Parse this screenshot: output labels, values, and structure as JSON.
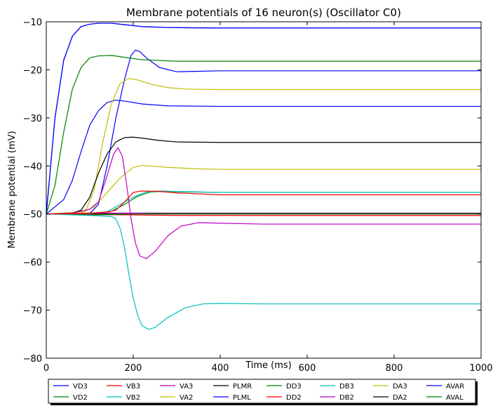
{
  "chart_data": {
    "type": "line",
    "title": "Membrane potentials of 16 neuron(s) (Oscillator C0)",
    "xlabel": "Time (ms)",
    "ylabel": "Membrane potential (mV)",
    "xlim": [
      0,
      1000
    ],
    "ylim": [
      -80,
      -10
    ],
    "xticks": [
      0,
      200,
      400,
      600,
      800,
      1000
    ],
    "yticks": [
      -80,
      -70,
      -60,
      -50,
      -40,
      -30,
      -20,
      -10
    ],
    "grid": false,
    "legend_placement": "bottom-center",
    "series": [
      {
        "name": "VD3",
        "color": "#0000ff",
        "points": [
          [
            0,
            -50
          ],
          [
            20,
            -30
          ],
          [
            40,
            -18
          ],
          [
            60,
            -13
          ],
          [
            80,
            -11
          ],
          [
            100,
            -10.5
          ],
          [
            120,
            -10.3
          ],
          [
            150,
            -10.3
          ],
          [
            180,
            -10.6
          ],
          [
            220,
            -11.0
          ],
          [
            280,
            -11.2
          ],
          [
            400,
            -11.3
          ],
          [
            1000,
            -11.3
          ]
        ]
      },
      {
        "name": "VD2",
        "color": "#008000",
        "points": [
          [
            0,
            -50
          ],
          [
            20,
            -44
          ],
          [
            40,
            -33
          ],
          [
            60,
            -24
          ],
          [
            80,
            -19.5
          ],
          [
            100,
            -17.5
          ],
          [
            120,
            -17.1
          ],
          [
            150,
            -17.0
          ],
          [
            180,
            -17.4
          ],
          [
            220,
            -17.9
          ],
          [
            300,
            -18.2
          ],
          [
            400,
            -18.2
          ],
          [
            1000,
            -18.2
          ]
        ]
      },
      {
        "name": "VB3",
        "color": "#ff0000",
        "points": [
          [
            0,
            -50
          ],
          [
            60,
            -49.9
          ],
          [
            100,
            -49.8
          ],
          [
            140,
            -49.6
          ],
          [
            160,
            -49.2
          ],
          [
            180,
            -47.5
          ],
          [
            200,
            -45.5
          ],
          [
            220,
            -45.2
          ],
          [
            260,
            -45.3
          ],
          [
            300,
            -45.6
          ],
          [
            400,
            -46.0
          ],
          [
            1000,
            -46.0
          ]
        ]
      },
      {
        "name": "VB2",
        "color": "#00bfbf",
        "points": [
          [
            0,
            -50
          ],
          [
            100,
            -50.3
          ],
          [
            150,
            -50.5
          ],
          [
            160,
            -51.0
          ],
          [
            170,
            -53
          ],
          [
            180,
            -57
          ],
          [
            190,
            -62.5
          ],
          [
            200,
            -67.5
          ],
          [
            210,
            -71
          ],
          [
            220,
            -73.2
          ],
          [
            235,
            -74.0
          ],
          [
            250,
            -73.6
          ],
          [
            280,
            -71.5
          ],
          [
            320,
            -69.5
          ],
          [
            360,
            -68.7
          ],
          [
            400,
            -68.6
          ],
          [
            500,
            -68.7
          ],
          [
            1000,
            -68.7
          ]
        ]
      },
      {
        "name": "VA3",
        "color": "#bf00bf",
        "points": [
          [
            0,
            -50
          ],
          [
            60,
            -49.8
          ],
          [
            100,
            -49.0
          ],
          [
            120,
            -47.5
          ],
          [
            140,
            -42
          ],
          [
            155,
            -37.5
          ],
          [
            165,
            -36.2
          ],
          [
            175,
            -38
          ],
          [
            185,
            -44
          ],
          [
            195,
            -51
          ],
          [
            205,
            -56
          ],
          [
            215,
            -58.7
          ],
          [
            230,
            -59.3
          ],
          [
            250,
            -57.8
          ],
          [
            280,
            -54.5
          ],
          [
            310,
            -52.5
          ],
          [
            350,
            -51.8
          ],
          [
            400,
            -51.9
          ],
          [
            500,
            -52.1
          ],
          [
            1000,
            -52.1
          ]
        ]
      },
      {
        "name": "VA2",
        "color": "#bfbf00",
        "points": [
          [
            0,
            -50
          ],
          [
            80,
            -49.8
          ],
          [
            110,
            -48.5
          ],
          [
            140,
            -45.5
          ],
          [
            170,
            -42.5
          ],
          [
            200,
            -40.3
          ],
          [
            220,
            -39.9
          ],
          [
            240,
            -40.0
          ],
          [
            280,
            -40.3
          ],
          [
            350,
            -40.6
          ],
          [
            400,
            -40.7
          ],
          [
            1000,
            -40.7
          ]
        ]
      },
      {
        "name": "PLMR",
        "color": "#000000",
        "points": [
          [
            0,
            -50
          ],
          [
            60,
            -49.8
          ],
          [
            80,
            -49.2
          ],
          [
            100,
            -46.5
          ],
          [
            120,
            -41.5
          ],
          [
            140,
            -37.5
          ],
          [
            160,
            -35.0
          ],
          [
            180,
            -34.1
          ],
          [
            200,
            -34.0
          ],
          [
            220,
            -34.2
          ],
          [
            260,
            -34.7
          ],
          [
            300,
            -35.0
          ],
          [
            400,
            -35.1
          ],
          [
            1000,
            -35.1
          ]
        ]
      },
      {
        "name": "PLML",
        "color": "#0000ff",
        "points": [
          [
            0,
            -50
          ],
          [
            10,
            -40
          ],
          [
            20,
            -30
          ],
          [
            40,
            -18
          ],
          [
            60,
            -13
          ],
          [
            80,
            -11
          ],
          [
            100,
            -10.5
          ],
          [
            120,
            -10.3
          ],
          [
            150,
            -10.3
          ],
          [
            180,
            -10.6
          ],
          [
            220,
            -11.0
          ],
          [
            280,
            -11.2
          ],
          [
            400,
            -11.3
          ],
          [
            1000,
            -11.3
          ]
        ]
      },
      {
        "name": "DD3",
        "color": "#008000",
        "points": [
          [
            0,
            -50
          ],
          [
            100,
            -50.2
          ],
          [
            150,
            -50.1
          ],
          [
            200,
            -50.0
          ],
          [
            250,
            -49.9
          ],
          [
            300,
            -49.9
          ],
          [
            1000,
            -49.9
          ]
        ]
      },
      {
        "name": "DD2",
        "color": "#ff0000",
        "points": [
          [
            0,
            -50
          ],
          [
            100,
            -50.1
          ],
          [
            200,
            -50.2
          ],
          [
            300,
            -50.3
          ],
          [
            1000,
            -50.3
          ]
        ]
      },
      {
        "name": "DB3",
        "color": "#00bfbf",
        "points": [
          [
            0,
            -50
          ],
          [
            100,
            -49.9
          ],
          [
            140,
            -49.5
          ],
          [
            170,
            -48.0
          ],
          [
            200,
            -46.5
          ],
          [
            230,
            -45.4
          ],
          [
            260,
            -45.2
          ],
          [
            300,
            -45.3
          ],
          [
            400,
            -45.5
          ],
          [
            1000,
            -45.5
          ]
        ]
      },
      {
        "name": "DB2",
        "color": "#bf00bf",
        "points": [
          [
            0,
            -50
          ],
          [
            80,
            -49.9
          ],
          [
            100,
            -49.8
          ],
          [
            1000,
            -49.8
          ]
        ]
      },
      {
        "name": "DA3",
        "color": "#bfbf00",
        "points": [
          [
            0,
            -50
          ],
          [
            90,
            -49.5
          ],
          [
            110,
            -45
          ],
          [
            130,
            -35
          ],
          [
            150,
            -27
          ],
          [
            170,
            -22.8
          ],
          [
            190,
            -21.8
          ],
          [
            210,
            -22.1
          ],
          [
            240,
            -23.0
          ],
          [
            280,
            -23.7
          ],
          [
            320,
            -24.0
          ],
          [
            400,
            -24.1
          ],
          [
            1000,
            -24.1
          ]
        ]
      },
      {
        "name": "DA2",
        "color": "#000000",
        "points": [
          [
            0,
            -50
          ],
          [
            100,
            -50
          ],
          [
            1000,
            -50
          ]
        ]
      },
      {
        "name": "AVAR",
        "color": "#0000ff",
        "points": [
          [
            0,
            -50
          ],
          [
            40,
            -47
          ],
          [
            60,
            -43
          ],
          [
            80,
            -37
          ],
          [
            100,
            -31.5
          ],
          [
            120,
            -28.5
          ],
          [
            140,
            -26.8
          ],
          [
            160,
            -26.3
          ],
          [
            180,
            -26.5
          ],
          [
            220,
            -27.1
          ],
          [
            280,
            -27.5
          ],
          [
            400,
            -27.6
          ],
          [
            1000,
            -27.6
          ]
        ]
      },
      {
        "name": "AVAL",
        "color": "#008000",
        "points": [
          [
            0,
            -50
          ],
          [
            100,
            -50
          ],
          [
            150,
            -49.4
          ],
          [
            180,
            -48.0
          ],
          [
            210,
            -46.3
          ],
          [
            240,
            -45.4
          ],
          [
            270,
            -45.3
          ],
          [
            320,
            -45.4
          ],
          [
            400,
            -45.5
          ],
          [
            1000,
            -45.5
          ]
        ]
      },
      {
        "name": "",
        "color": "#0000ff",
        "points": [
          [
            0,
            -50
          ],
          [
            100,
            -49.9
          ],
          [
            120,
            -48
          ],
          [
            140,
            -40
          ],
          [
            160,
            -30
          ],
          [
            180,
            -22
          ],
          [
            195,
            -17.0
          ],
          [
            205,
            -15.9
          ],
          [
            215,
            -16.2
          ],
          [
            230,
            -17.5
          ],
          [
            260,
            -19.5
          ],
          [
            300,
            -20.4
          ],
          [
            350,
            -20.3
          ],
          [
            400,
            -20.2
          ],
          [
            1000,
            -20.2
          ]
        ]
      }
    ]
  }
}
